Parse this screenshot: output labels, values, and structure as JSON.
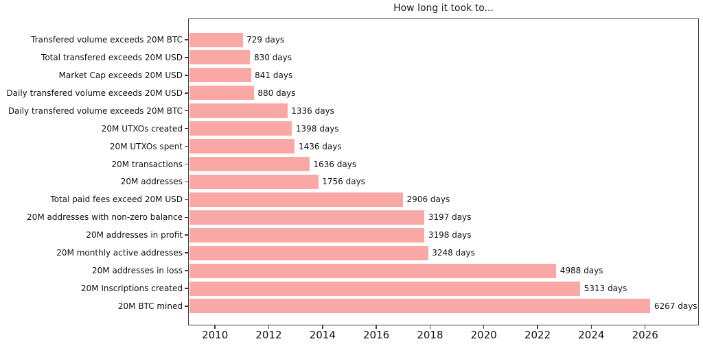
{
  "chart_data": {
    "type": "bar",
    "orientation": "horizontal",
    "title": "How long it took to...",
    "categories": [
      "Transfered volume exceeds 20M BTC",
      "Total transfered exceeds 20M USD",
      "Market Cap exceeds 20M USD",
      "Daily transfered volume exceeds 20M USD",
      "Daily transfered volume exceeds 20M BTC",
      "20M UTXOs created",
      "20M UTXOs spent",
      "20M transactions",
      "20M addresses",
      "Total paid fees exceed 20M USD",
      "20M addresses with non-zero balance",
      "20M addresses in profit",
      "20M monthly active addresses",
      "20M addresses in loss",
      "20M Inscriptions created",
      "20M BTC mined"
    ],
    "values": [
      729,
      830,
      841,
      880,
      1336,
      1398,
      1436,
      1636,
      1756,
      2906,
      3197,
      3198,
      3248,
      4988,
      5313,
      6267
    ],
    "value_labels": [
      "729 days",
      "830 days",
      "841 days",
      "880 days",
      "1336 days",
      "1398 days",
      "1436 days",
      "1636 days",
      "1756 days",
      "2906 days",
      "3197 days",
      "3198 days",
      "3248 days",
      "4988 days",
      "5313 days",
      "6267 days"
    ],
    "xlabel": "",
    "ylabel": "",
    "x_tick_labels": [
      "2010",
      "2012",
      "2014",
      "2016",
      "2018",
      "2020",
      "2022",
      "2024",
      "2026"
    ],
    "x_tick_years": [
      2010,
      2012,
      2014,
      2016,
      2018,
      2020,
      2022,
      2024,
      2026
    ],
    "x_axis_year_range": [
      2009,
      2028
    ],
    "value_unit": "days",
    "grid": false,
    "legend": null,
    "bar_color": "#FAA8A5",
    "text_color": "#111111",
    "spine_color": "#3d3d3d"
  }
}
